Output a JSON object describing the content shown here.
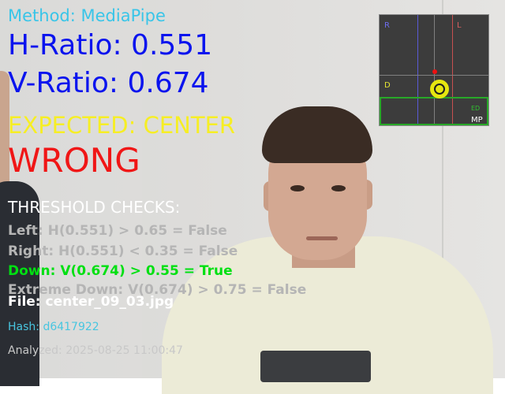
{
  "overlay": {
    "method": "Method: MediaPipe",
    "h_ratio": "H-Ratio: 0.551",
    "v_ratio": "V-Ratio: 0.674",
    "expected": "EXPECTED: CENTER",
    "result": "WRONG",
    "checks_title": "THRESHOLD CHECKS:",
    "checks": {
      "left": "Left: H(0.551) > 0.65 = False",
      "right": "Right: H(0.551) < 0.35 = False",
      "down": "Down: V(0.674) > 0.55 = True",
      "extreme_down": "Extreme Down: V(0.674) > 0.75 = False"
    },
    "file": "File: center_09_03.jpg",
    "hash": "Hash: d6417922",
    "analyzed": "Analyzed: 2025-08-25 11:00:47"
  },
  "gaze_map": {
    "label_r": "R",
    "label_l": "L",
    "label_d": "D",
    "label_ed": "ED",
    "label_mp": "MP"
  },
  "colors": {
    "method": "#39c5e8",
    "ratio": "#0a14ee",
    "expected": "#f6ee24",
    "result_wrong": "#f01616",
    "check_true": "#00e012",
    "check_false": "#b5b5b5",
    "hash": "#48c6e0"
  }
}
